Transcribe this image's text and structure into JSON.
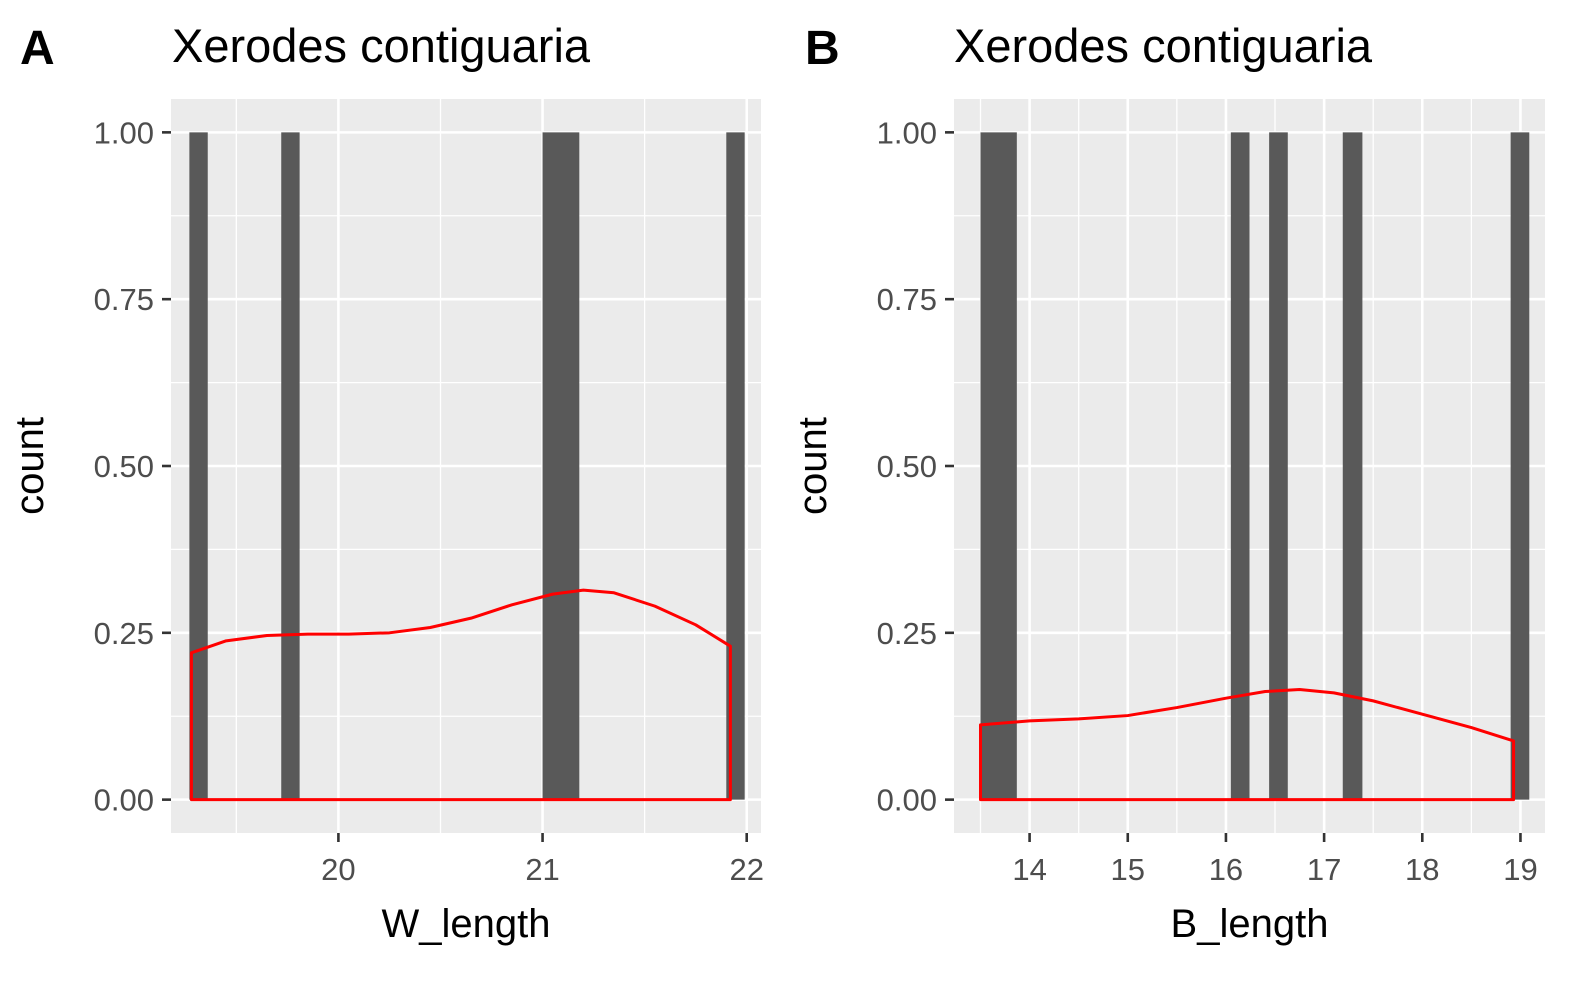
{
  "chart_data": [
    {
      "type": "bar",
      "panel_tag": "A",
      "title": "Xerodes contiguaria",
      "xlabel": "W_length",
      "ylabel": "count",
      "xlim": [
        19.18,
        22.07
      ],
      "ylim": [
        -0.05,
        1.05
      ],
      "xticks": [
        20,
        21,
        22
      ],
      "xtick_labels": [
        "20",
        "21",
        "22"
      ],
      "yticks": [
        0,
        0.25,
        0.5,
        0.75,
        1
      ],
      "ytick_labels": [
        "0.00",
        "0.25",
        "0.50",
        "0.75",
        "1.00"
      ],
      "grid": true,
      "bars": [
        {
          "x0": 19.27,
          "x1": 19.36,
          "count": 1
        },
        {
          "x0": 19.72,
          "x1": 19.81,
          "count": 1
        },
        {
          "x0": 21.0,
          "x1": 21.18,
          "count": 1
        },
        {
          "x0": 21.9,
          "x1": 21.99,
          "count": 1
        }
      ],
      "density_line": {
        "color": "#ff0000",
        "x": [
          19.28,
          19.45,
          19.65,
          19.85,
          20.05,
          20.25,
          20.45,
          20.65,
          20.85,
          21.05,
          21.2,
          21.35,
          21.55,
          21.75,
          21.92
        ],
        "y": [
          0.22,
          0.238,
          0.246,
          0.248,
          0.248,
          0.25,
          0.258,
          0.272,
          0.292,
          0.308,
          0.314,
          0.31,
          0.29,
          0.262,
          0.23
        ]
      }
    },
    {
      "type": "bar",
      "panel_tag": "B",
      "title": "Xerodes contiguaria",
      "xlabel": "B_length",
      "ylabel": "count",
      "xlim": [
        13.23,
        19.25
      ],
      "ylim": [
        -0.05,
        1.05
      ],
      "xticks": [
        14,
        15,
        16,
        17,
        18,
        19
      ],
      "xtick_labels": [
        "14",
        "15",
        "16",
        "17",
        "18",
        "19"
      ],
      "yticks": [
        0,
        0.25,
        0.5,
        0.75,
        1
      ],
      "ytick_labels": [
        "0.00",
        "0.25",
        "0.50",
        "0.75",
        "1.00"
      ],
      "grid": true,
      "bars": [
        {
          "x0": 13.5,
          "x1": 13.87,
          "count": 1
        },
        {
          "x0": 16.05,
          "x1": 16.24,
          "count": 1
        },
        {
          "x0": 16.44,
          "x1": 16.63,
          "count": 1
        },
        {
          "x0": 17.19,
          "x1": 17.39,
          "count": 1
        },
        {
          "x0": 18.9,
          "x1": 19.09,
          "count": 1
        }
      ],
      "density_line": {
        "color": "#ff0000",
        "x": [
          13.5,
          14.0,
          14.5,
          15.0,
          15.5,
          16.0,
          16.4,
          16.75,
          17.1,
          17.5,
          18.0,
          18.5,
          18.93
        ],
        "y": [
          0.112,
          0.118,
          0.121,
          0.126,
          0.138,
          0.152,
          0.162,
          0.165,
          0.16,
          0.148,
          0.128,
          0.108,
          0.088
        ]
      }
    }
  ],
  "colors": {
    "panel_background": "#ebebeb",
    "grid_major": "#ffffff",
    "bar_fill": "#595959",
    "tick_text": "#4d4d4d",
    "title_text": "#000000"
  }
}
